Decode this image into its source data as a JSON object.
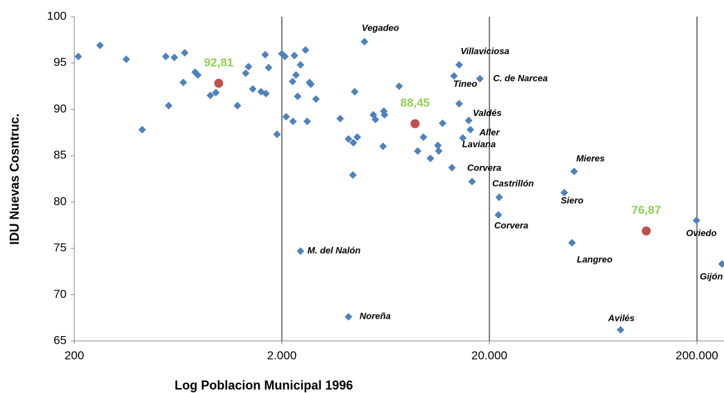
{
  "chart_data": {
    "type": "scatter",
    "x_label": "Log Poblacion Municipal 1996",
    "y_label": "IDU Nuevas Cosntruc.",
    "log_x": true,
    "grid_x": true,
    "xlim": [
      200,
      270000
    ],
    "ylim": [
      65,
      100
    ],
    "xticks": [
      200,
      {
        "value": 2000,
        "label": "2.000"
      },
      {
        "value": 20000,
        "label": "20.000"
      },
      {
        "value": 200000,
        "label": "200.000"
      }
    ],
    "yticks": [
      65,
      70,
      75,
      80,
      85,
      90,
      95,
      100
    ],
    "series": [
      {
        "color": "#4f81bd",
        "marker": "diamond",
        "x": [
          209,
          266,
          356,
          425,
          552,
          607,
          681,
          670,
          570,
          764,
          787,
          905,
          962,
          1222,
          1340,
          1382,
          1449,
          1588,
          1676,
          1663,
          1727,
          1896,
          2000,
          2070,
          2098,
          2264,
          2300,
          2254,
          2340,
          2383,
          2460,
          2600,
          2720,
          2760,
          2650,
          2920,
          2460,
          3820,
          4190,
          4420,
          4620,
          4490,
          4400,
          4190,
          5000,
          5520,
          5650,
          6200,
          6250,
          6150,
          7350,
          9030,
          9620,
          10400,
          11300,
          11400,
          11900,
          13200,
          13500,
          14300,
          14300,
          14900,
          15900,
          16200,
          16500,
          18000,
          22300,
          22100,
          45900,
          51200,
          50000,
          85700,
          199000,
          264000
        ],
        "values": [
          95.7,
          96.9,
          95.4,
          87.8,
          95.7,
          95.6,
          96.1,
          92.9,
          90.4,
          94.0,
          93.7,
          91.5,
          91.8,
          90.4,
          93.9,
          94.6,
          92.2,
          91.9,
          91.7,
          95.9,
          94.5,
          87.3,
          96.0,
          95.7,
          89.2,
          88.7,
          95.8,
          93.0,
          93.7,
          91.4,
          94.8,
          96.4,
          92.9,
          92.7,
          88.7,
          91.1,
          74.7,
          89.0,
          86.8,
          86.4,
          87.0,
          91.9,
          82.9,
          67.6,
          97.3,
          89.4,
          88.9,
          89.8,
          89.4,
          86.0,
          92.5,
          85.5,
          87.0,
          84.7,
          86.1,
          85.5,
          88.5,
          83.7,
          93.6,
          94.8,
          90.6,
          86.9,
          88.8,
          87.8,
          82.2,
          93.3,
          80.5,
          78.6,
          81.0,
          83.3,
          75.6,
          66.2,
          78.0,
          73.3
        ],
        "labels": [
          null,
          null,
          null,
          null,
          null,
          null,
          null,
          null,
          null,
          null,
          null,
          null,
          null,
          null,
          null,
          null,
          null,
          null,
          null,
          null,
          null,
          null,
          null,
          null,
          null,
          null,
          null,
          null,
          null,
          null,
          null,
          null,
          null,
          null,
          null,
          null,
          "M. del Nalón",
          null,
          null,
          null,
          null,
          null,
          null,
          "Noreña",
          "Vegadeo",
          null,
          null,
          null,
          null,
          null,
          null,
          null,
          null,
          null,
          null,
          null,
          null,
          null,
          "Tineo",
          "Villaviciosa",
          null,
          "Laviana",
          "Valdés",
          "Aller",
          "Corvera",
          "C. de Narcea",
          "Castrillón",
          "Corvera",
          "Siero",
          "Mieres",
          "Langreo",
          "Avilés",
          "Oviedo",
          "Gijón"
        ]
      },
      {
        "color": "#c0504d",
        "marker": "circle",
        "label_color": "#92d050",
        "x": [
          993,
          8770,
          114000
        ],
        "values": [
          92.81,
          88.45,
          76.87
        ],
        "value_labels": [
          "92,81",
          "88,45",
          "76,87"
        ]
      }
    ]
  }
}
